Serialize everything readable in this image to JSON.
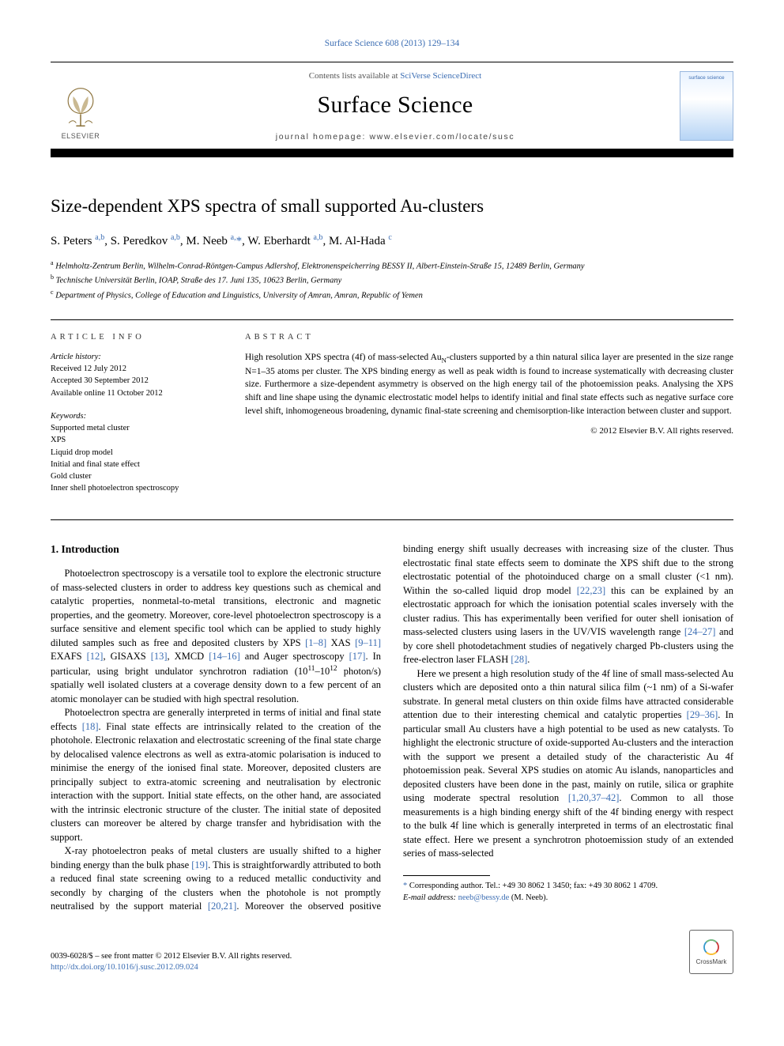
{
  "journal_ref": "Surface Science 608 (2013) 129–134",
  "header": {
    "elsevier": "ELSEVIER",
    "contents_prefix": "Contents lists available at ",
    "contents_link": "SciVerse ScienceDirect",
    "journal_title": "Surface Science",
    "homepage": "journal homepage: www.elsevier.com/locate/susc",
    "cover_label": "surface science"
  },
  "title": "Size-dependent XPS spectra of small supported Au-clusters",
  "authors_html": "S. Peters <sup>a,b</sup>, S. Peredkov <sup>a,b</sup>, M. Neeb <sup>a,</sup><span class='star'>*</span>, W. Eberhardt <sup>a,b</sup>, M. Al-Hada <sup>c</sup>",
  "affiliations": [
    {
      "sup": "a",
      "text": "Helmholtz-Zentrum Berlin, Wilhelm-Conrad-Röntgen-Campus Adlershof, Elektronenspeicherring BESSY II, Albert-Einstein-Straße 15, 12489 Berlin, Germany"
    },
    {
      "sup": "b",
      "text": "Technische Universität Berlin, IOAP, Straße des 17. Juni 135, 10623 Berlin, Germany"
    },
    {
      "sup": "c",
      "text": "Department of Physics, College of Education and Linguistics, University of Amran, Amran, Republic of Yemen"
    }
  ],
  "article_info": {
    "label": "ARTICLE INFO",
    "history_label": "Article history:",
    "history": [
      "Received 12 July 2012",
      "Accepted 30 September 2012",
      "Available online 11 October 2012"
    ],
    "keywords_label": "Keywords:",
    "keywords": [
      "Supported metal cluster",
      "XPS",
      "Liquid drop model",
      "Initial and final state effect",
      "Gold cluster",
      "Inner shell photoelectron spectroscopy"
    ]
  },
  "abstract": {
    "label": "ABSTRACT",
    "text": "High resolution XPS spectra (4f) of mass-selected Au_N-clusters supported by a thin natural silica layer are presented in the size range N=1–35 atoms per cluster. The XPS binding energy as well as peak width is found to increase systematically with decreasing cluster size. Furthermore a size-dependent asymmetry is observed on the high energy tail of the photoemission peaks. Analysing the XPS shift and line shape using the dynamic electrostatic model helps to identify initial and final state effects such as negative surface core level shift, inhomogeneous broadening, dynamic final-state screening and chemisorption-like interaction between cluster and support.",
    "copyright": "© 2012 Elsevier B.V. All rights reserved."
  },
  "body": {
    "heading": "1. Introduction",
    "paragraphs": [
      "Photoelectron spectroscopy is a versatile tool to explore the electronic structure of mass-selected clusters in order to address key questions such as chemical and catalytic properties, nonmetal-to-metal transitions, electronic and magnetic properties, and the geometry. Moreover, core-level photoelectron spectroscopy is a surface sensitive and element specific tool which can be applied to study highly diluted samples such as free and deposited clusters by XPS [1–8] XAS [9–11] EXAFS [12], GISAXS [13], XMCD [14–16] and Auger spectroscopy [17]. In particular, using bright undulator synchrotron radiation (10^11–10^12 photon/s) spatially well isolated clusters at a coverage density down to a few percent of an atomic monolayer can be studied with high spectral resolution.",
      "Photoelectron spectra are generally interpreted in terms of initial and final state effects [18]. Final state effects are intrinsically related to the creation of the photohole. Electronic relaxation and electrostatic screening of the final state charge by delocalised valence electrons as well as extra-atomic polarisation is induced to minimise the energy of the ionised final state. Moreover, deposited clusters are principally subject to extra-atomic screening and neutralisation by electronic interaction with the support. Initial state effects, on the other hand, are associated with the intrinsic electronic structure of the cluster. The initial state of deposited clusters can moreover be altered by charge transfer and hybridisation with the support.",
      "X-ray photoelectron peaks of metal clusters are usually shifted to a higher binding energy than the bulk phase [19]. This is straightforwardly attributed to both a reduced final state screening owing to a reduced metallic conductivity and secondly by charging of the clusters when the photohole is not promptly neutralised by the support material [20,21]. Moreover the observed positive binding energy shift usually decreases with increasing size of the cluster. Thus electrostatic final state effects seem to dominate the XPS shift due to the strong electrostatic potential of the photoinduced charge on a small cluster (<1 nm). Within the so-called liquid drop model [22,23] this can be explained by an electrostatic approach for which the ionisation potential scales inversely with the cluster radius. This has experimentally been verified for outer shell ionisation of mass-selected clusters using lasers in the UV/VIS wavelength range [24–27] and by core shell photodetachment studies of negatively charged Pb-clusters using the free-electron laser FLASH [28].",
      "Here we present a high resolution study of the 4f line of small mass-selected Au clusters which are deposited onto a thin natural silica film (~1 nm) of a Si-wafer substrate. In general metal clusters on thin oxide films have attracted considerable attention due to their interesting chemical and catalytic properties [29–36]. In particular small Au clusters have a high potential to be used as new catalysts. To highlight the electronic structure of oxide-supported Au-clusters and the interaction with the support we present a detailed study of the characteristic Au 4f photoemission peak. Several XPS studies on atomic Au islands, nanoparticles and deposited clusters have been done in the past, mainly on rutile, silica or graphite using moderate spectral resolution [1,20,37–42]. Common to all those measurements is a high binding energy shift of the 4f binding energy with respect to the bulk 4f line which is generally interpreted in terms of an electrostatic final state effect. Here we present a synchrotron photoemission study of an extended series of mass-selected"
    ]
  },
  "footnote": {
    "corr": "Corresponding author. Tel.: +49 30 8062 1 3450; fax: +49 30 8062 1 4709.",
    "email_label": "E-mail address: ",
    "email": "neeb@bessy.de",
    "email_who": " (M. Neeb)."
  },
  "footer": {
    "issn_line": "0039-6028/$ – see front matter © 2012 Elsevier B.V. All rights reserved.",
    "doi": "http://dx.doi.org/10.1016/j.susc.2012.09.024",
    "crossmark": "CrossMark"
  },
  "refs": {
    "r1_8": "[1–8]",
    "r9_11": "[9–11]",
    "r12": "[12]",
    "r13": "[13]",
    "r14_16": "[14–16]",
    "r17": "[17]",
    "r18": "[18]",
    "r19": "[19]",
    "r20_21": "[20,21]",
    "r22_23": "[22,23]",
    "r24_27": "[24–27]",
    "r28": "[28]",
    "r29_36": "[29–36]",
    "r1_20_37_42": "[1,20,37–42]"
  },
  "colors": {
    "link": "#3b6db3",
    "text": "#000000",
    "background": "#ffffff"
  }
}
